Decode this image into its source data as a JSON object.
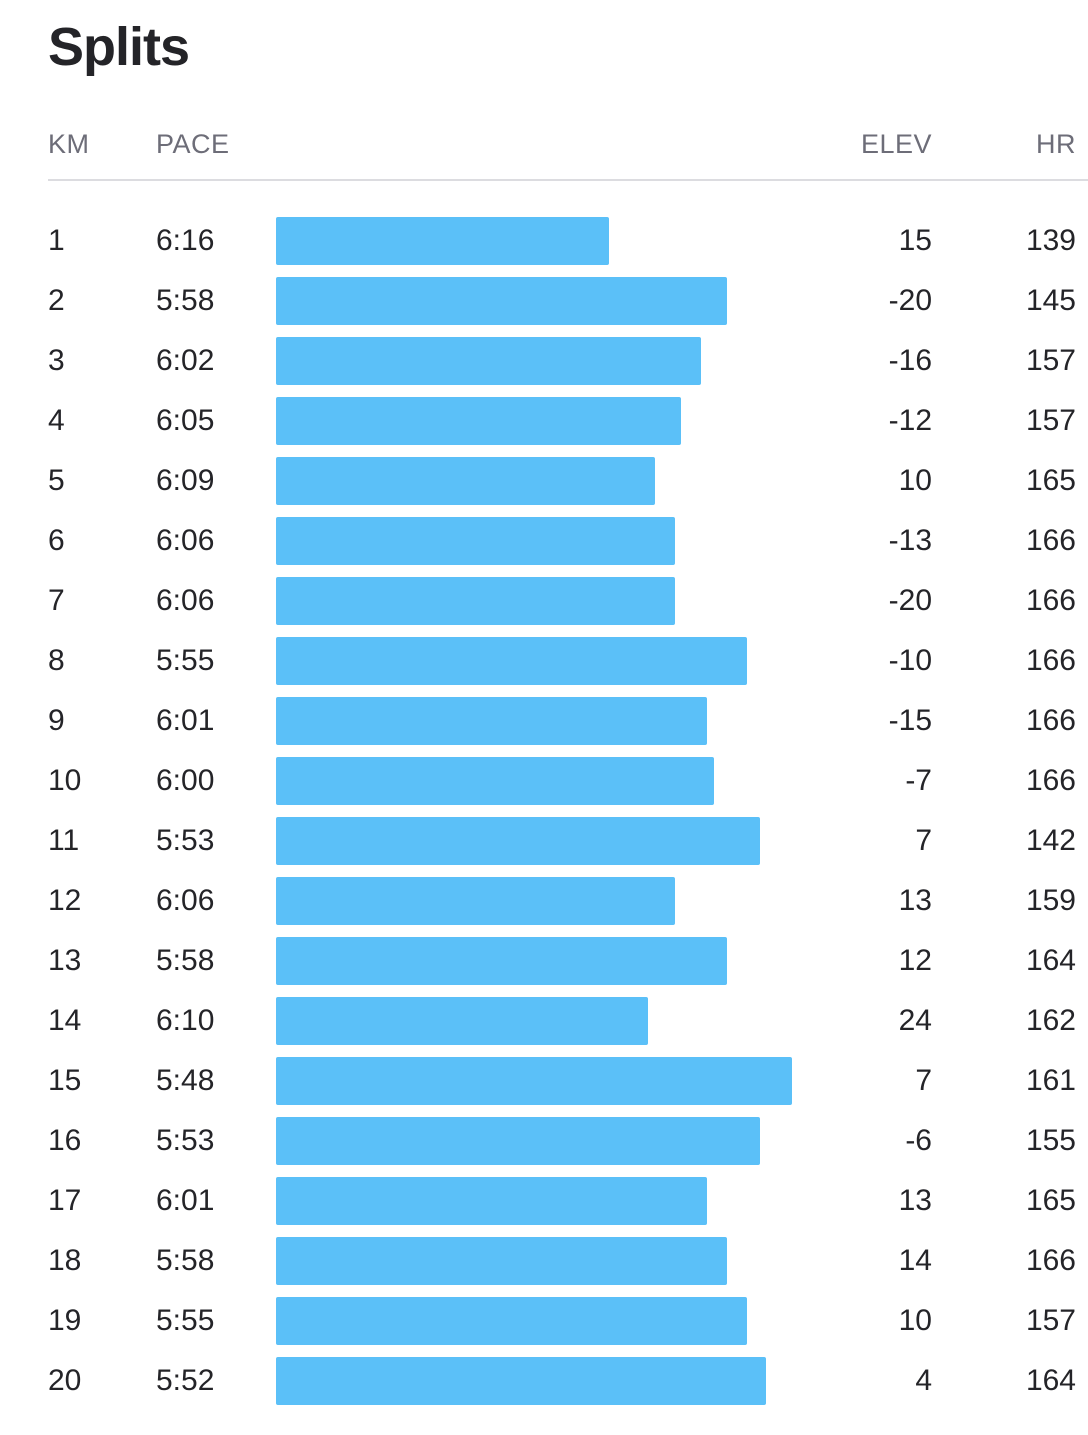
{
  "title": "Splits",
  "headers": {
    "km": "KM",
    "pace": "PACE",
    "elev": "ELEV",
    "hr": "HR"
  },
  "bar_color": "#5bc0f8",
  "splits": [
    {
      "km": "1",
      "pace": "6:16",
      "elev": "15",
      "hr": "139"
    },
    {
      "km": "2",
      "pace": "5:58",
      "elev": "-20",
      "hr": "145"
    },
    {
      "km": "3",
      "pace": "6:02",
      "elev": "-16",
      "hr": "157"
    },
    {
      "km": "4",
      "pace": "6:05",
      "elev": "-12",
      "hr": "157"
    },
    {
      "km": "5",
      "pace": "6:09",
      "elev": "10",
      "hr": "165"
    },
    {
      "km": "6",
      "pace": "6:06",
      "elev": "-13",
      "hr": "166"
    },
    {
      "km": "7",
      "pace": "6:06",
      "elev": "-20",
      "hr": "166"
    },
    {
      "km": "8",
      "pace": "5:55",
      "elev": "-10",
      "hr": "166"
    },
    {
      "km": "9",
      "pace": "6:01",
      "elev": "-15",
      "hr": "166"
    },
    {
      "km": "10",
      "pace": "6:00",
      "elev": "-7",
      "hr": "166"
    },
    {
      "km": "11",
      "pace": "5:53",
      "elev": "7",
      "hr": "142"
    },
    {
      "km": "12",
      "pace": "6:06",
      "elev": "13",
      "hr": "159"
    },
    {
      "km": "13",
      "pace": "5:58",
      "elev": "12",
      "hr": "164"
    },
    {
      "km": "14",
      "pace": "6:10",
      "elev": "24",
      "hr": "162"
    },
    {
      "km": "15",
      "pace": "5:48",
      "elev": "7",
      "hr": "161"
    },
    {
      "km": "16",
      "pace": "5:53",
      "elev": "-6",
      "hr": "155"
    },
    {
      "km": "17",
      "pace": "6:01",
      "elev": "13",
      "hr": "165"
    },
    {
      "km": "18",
      "pace": "5:58",
      "elev": "14",
      "hr": "166"
    },
    {
      "km": "19",
      "pace": "5:55",
      "elev": "10",
      "hr": "157"
    },
    {
      "km": "20",
      "pace": "5:52",
      "elev": "4",
      "hr": "164"
    }
  ]
}
